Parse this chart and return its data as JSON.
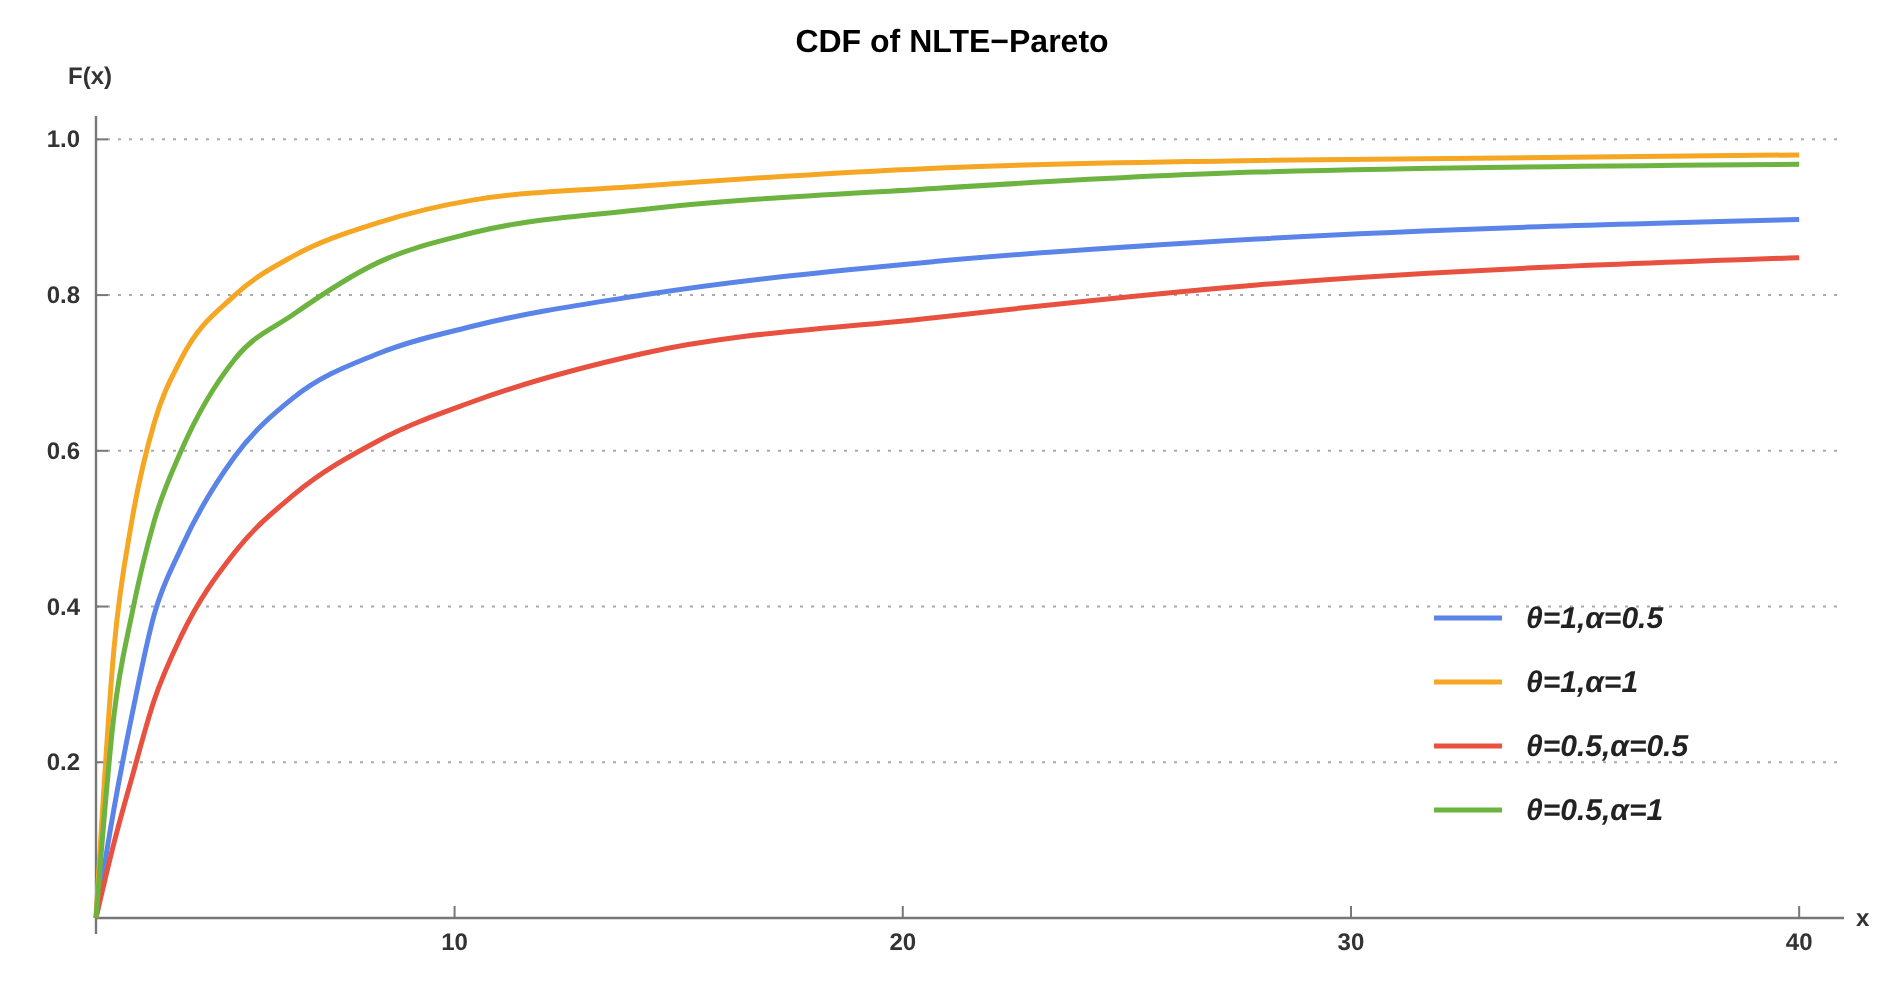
{
  "chart_data": {
    "type": "line",
    "title": "CDF of NLTE−Pareto",
    "xlabel": "x",
    "ylabel": "F(x)",
    "x": [
      2,
      2.4,
      2.8,
      3.3,
      3.9,
      5.1,
      6.4,
      8.3,
      10.4,
      14.2,
      20.7,
      27.9,
      40
    ],
    "series": [
      {
        "name": "θ=1,α=0.5",
        "color": "#5b84e8",
        "values": [
          0,
          0.14,
          0.26,
          0.39,
          0.475,
          0.593,
          0.668,
          0.725,
          0.76,
          0.8,
          0.843,
          0.872,
          0.897
        ]
      },
      {
        "name": "θ=1,α=1",
        "color": "#f5a623",
        "values": [
          0,
          0.345,
          0.51,
          0.636,
          0.718,
          0.8,
          0.85,
          0.893,
          0.922,
          0.94,
          0.963,
          0.973,
          0.98
        ]
      },
      {
        "name": "θ=0.5,α=0.5",
        "color": "#e8503f",
        "values": [
          0,
          0.096,
          0.18,
          0.28,
          0.362,
          0.47,
          0.543,
          0.613,
          0.663,
          0.725,
          0.771,
          0.813,
          0.848
        ]
      },
      {
        "name": "θ=0.5,α=1",
        "color": "#6cb33f",
        "values": [
          0,
          0.26,
          0.39,
          0.51,
          0.6,
          0.718,
          0.775,
          0.842,
          0.88,
          0.91,
          0.937,
          0.958,
          0.968
        ]
      }
    ],
    "xlim": [
      2,
      41
    ],
    "xticks": [
      10,
      20,
      30,
      40
    ],
    "ylim": [
      0,
      1.03
    ],
    "yticks": [
      {
        "value": 0.2,
        "label": "0.2"
      },
      {
        "value": 0.4,
        "label": "0.4"
      },
      {
        "value": 0.6,
        "label": "0.6"
      },
      {
        "value": 0.8,
        "label": "0.8"
      },
      {
        "value": 1,
        "label": "1.0"
      }
    ],
    "grid": "y",
    "legend": "bottom right",
    "marker": "none",
    "line_style": "solid"
  }
}
